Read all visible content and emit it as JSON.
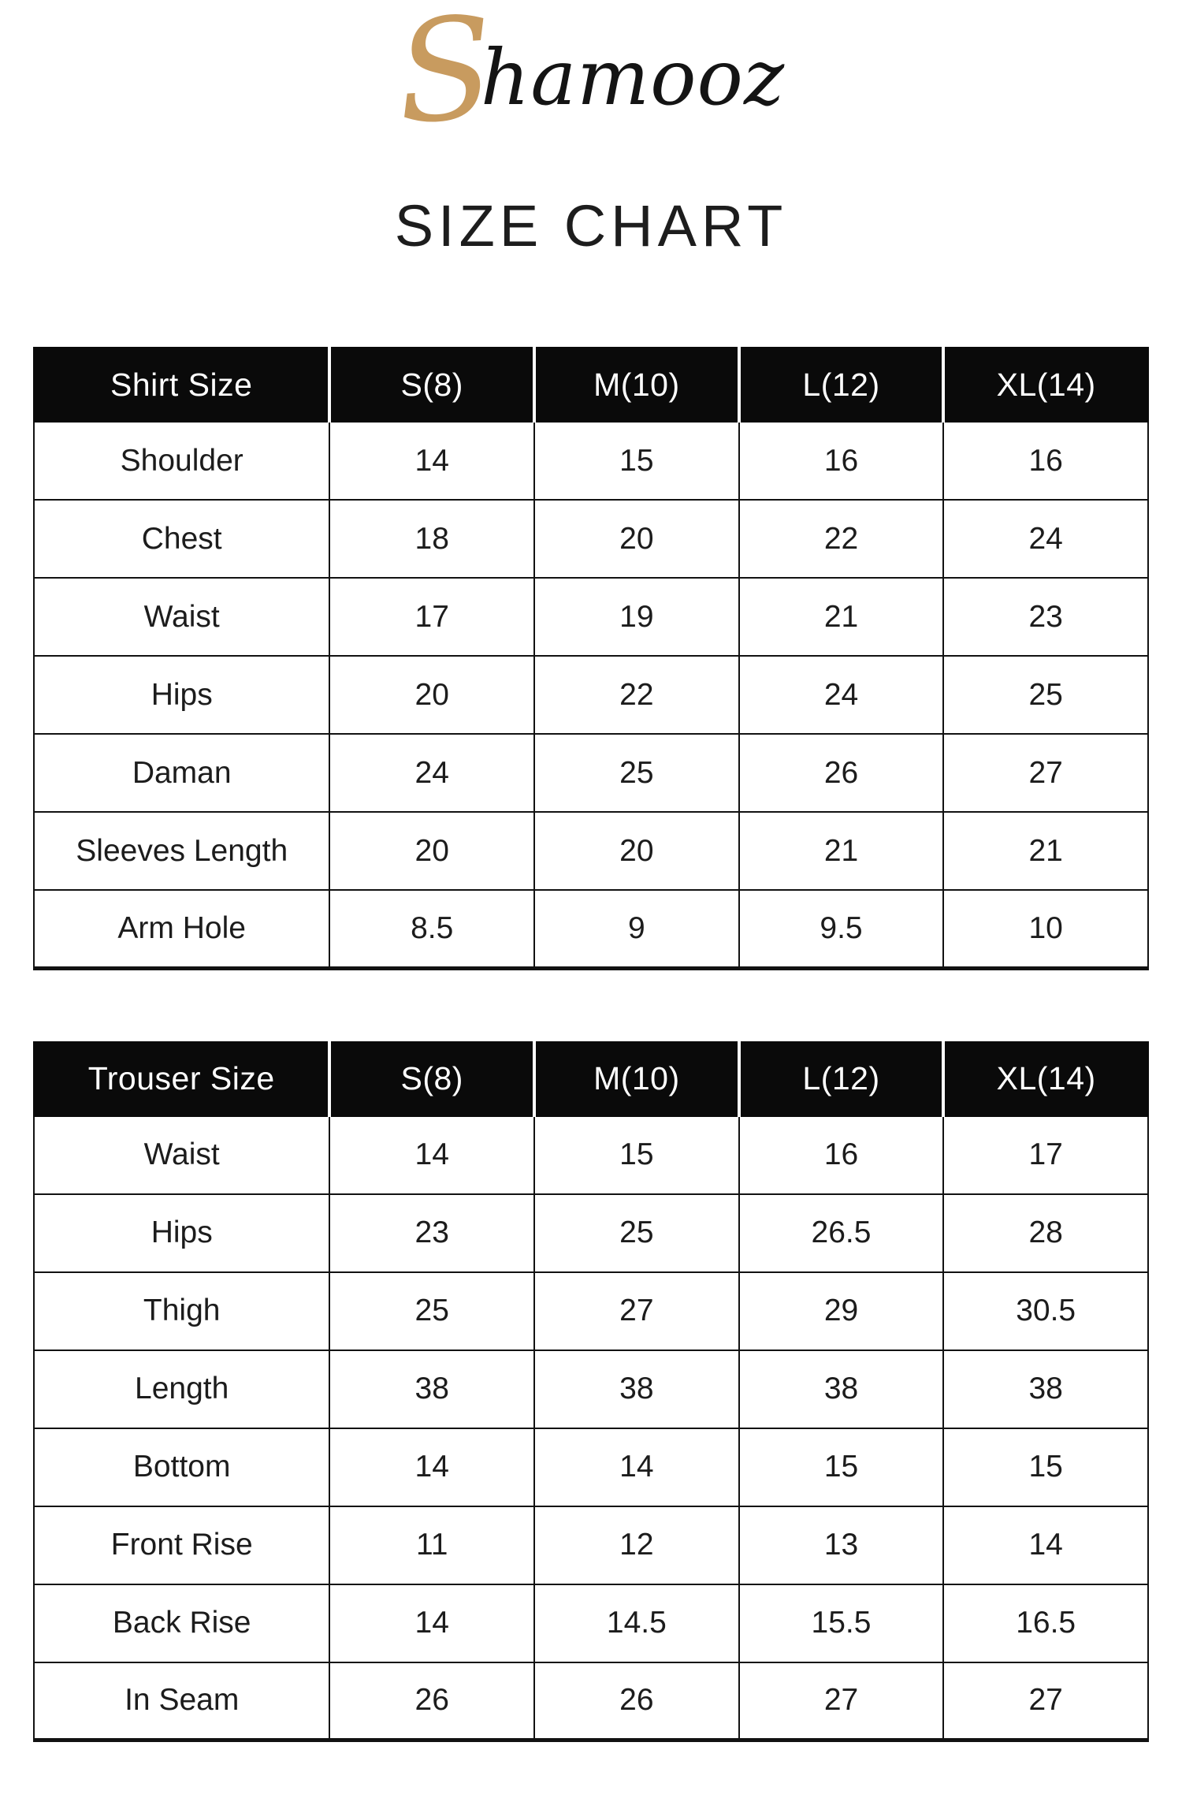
{
  "logo": {
    "initial": "S",
    "rest": "hamooz"
  },
  "title": "SIZE CHART",
  "colors": {
    "gold": "#C89B5F",
    "header_bg": "#0A0A0A",
    "header_text": "#FFFFFF",
    "body_text": "#1C1C1C",
    "border": "#121212"
  },
  "tables": [
    {
      "name": "shirt-size-table",
      "header": [
        "Shirt Size",
        "S(8)",
        "M(10)",
        "L(12)",
        "XL(14)"
      ],
      "rows": [
        {
          "label": "Shoulder",
          "values": [
            "14",
            "15",
            "16",
            "16"
          ]
        },
        {
          "label": "Chest",
          "values": [
            "18",
            "20",
            "22",
            "24"
          ]
        },
        {
          "label": "Waist",
          "values": [
            "17",
            "19",
            "21",
            "23"
          ]
        },
        {
          "label": "Hips",
          "values": [
            "20",
            "22",
            "24",
            "25"
          ]
        },
        {
          "label": "Daman",
          "values": [
            "24",
            "25",
            "26",
            "27"
          ]
        },
        {
          "label": "Sleeves Length",
          "values": [
            "20",
            "20",
            "21",
            "21"
          ]
        },
        {
          "label": "Arm Hole",
          "values": [
            "8.5",
            "9",
            "9.5",
            "10"
          ]
        }
      ]
    },
    {
      "name": "trouser-size-table",
      "header": [
        "Trouser Size",
        "S(8)",
        "M(10)",
        "L(12)",
        "XL(14)"
      ],
      "rows": [
        {
          "label": "Waist",
          "values": [
            "14",
            "15",
            "16",
            "17"
          ]
        },
        {
          "label": "Hips",
          "values": [
            "23",
            "25",
            "26.5",
            "28"
          ]
        },
        {
          "label": "Thigh",
          "values": [
            "25",
            "27",
            "29",
            "30.5"
          ]
        },
        {
          "label": "Length",
          "values": [
            "38",
            "38",
            "38",
            "38"
          ]
        },
        {
          "label": "Bottom",
          "values": [
            "14",
            "14",
            "15",
            "15"
          ]
        },
        {
          "label": "Front Rise",
          "values": [
            "11",
            "12",
            "13",
            "14"
          ]
        },
        {
          "label": "Back Rise",
          "values": [
            "14",
            "14.5",
            "15.5",
            "16.5"
          ]
        },
        {
          "label": "In Seam",
          "values": [
            "26",
            "26",
            "27",
            "27"
          ]
        }
      ]
    }
  ]
}
